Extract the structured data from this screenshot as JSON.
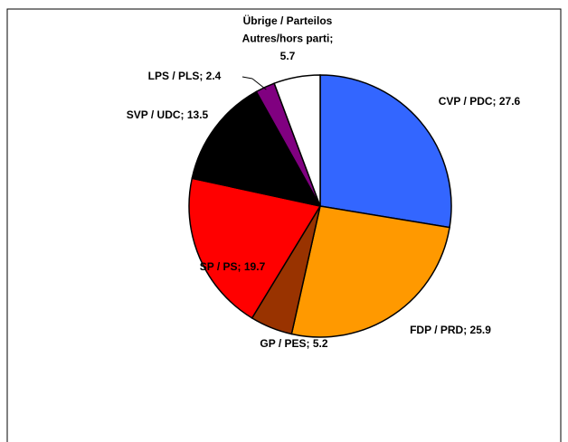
{
  "chart_data": {
    "type": "pie",
    "categories": [
      "CVP / PDC",
      "FDP / PRD",
      "GP / PES",
      "SP / PS",
      "SVP / UDC",
      "LPS / PLS",
      "Übrige / Parteilos Autres/hors parti"
    ],
    "values": [
      27.6,
      25.9,
      5.2,
      19.7,
      13.5,
      2.4,
      5.7
    ],
    "value_labels": [
      "CVP / PDC; 27.6",
      "FDP / PRD; 25.9",
      "GP / PES; 5.2",
      "SP / PS; 19.7",
      "SVP / UDC; 13.5",
      "LPS / PLS; 2.4",
      "Übrige / Parteilos\nAutres/hors parti;\n5.7"
    ],
    "colors": [
      "#3366ff",
      "#ff9900",
      "#993300",
      "#ff0000",
      "#000000",
      "#800080",
      "#ffffff"
    ]
  }
}
